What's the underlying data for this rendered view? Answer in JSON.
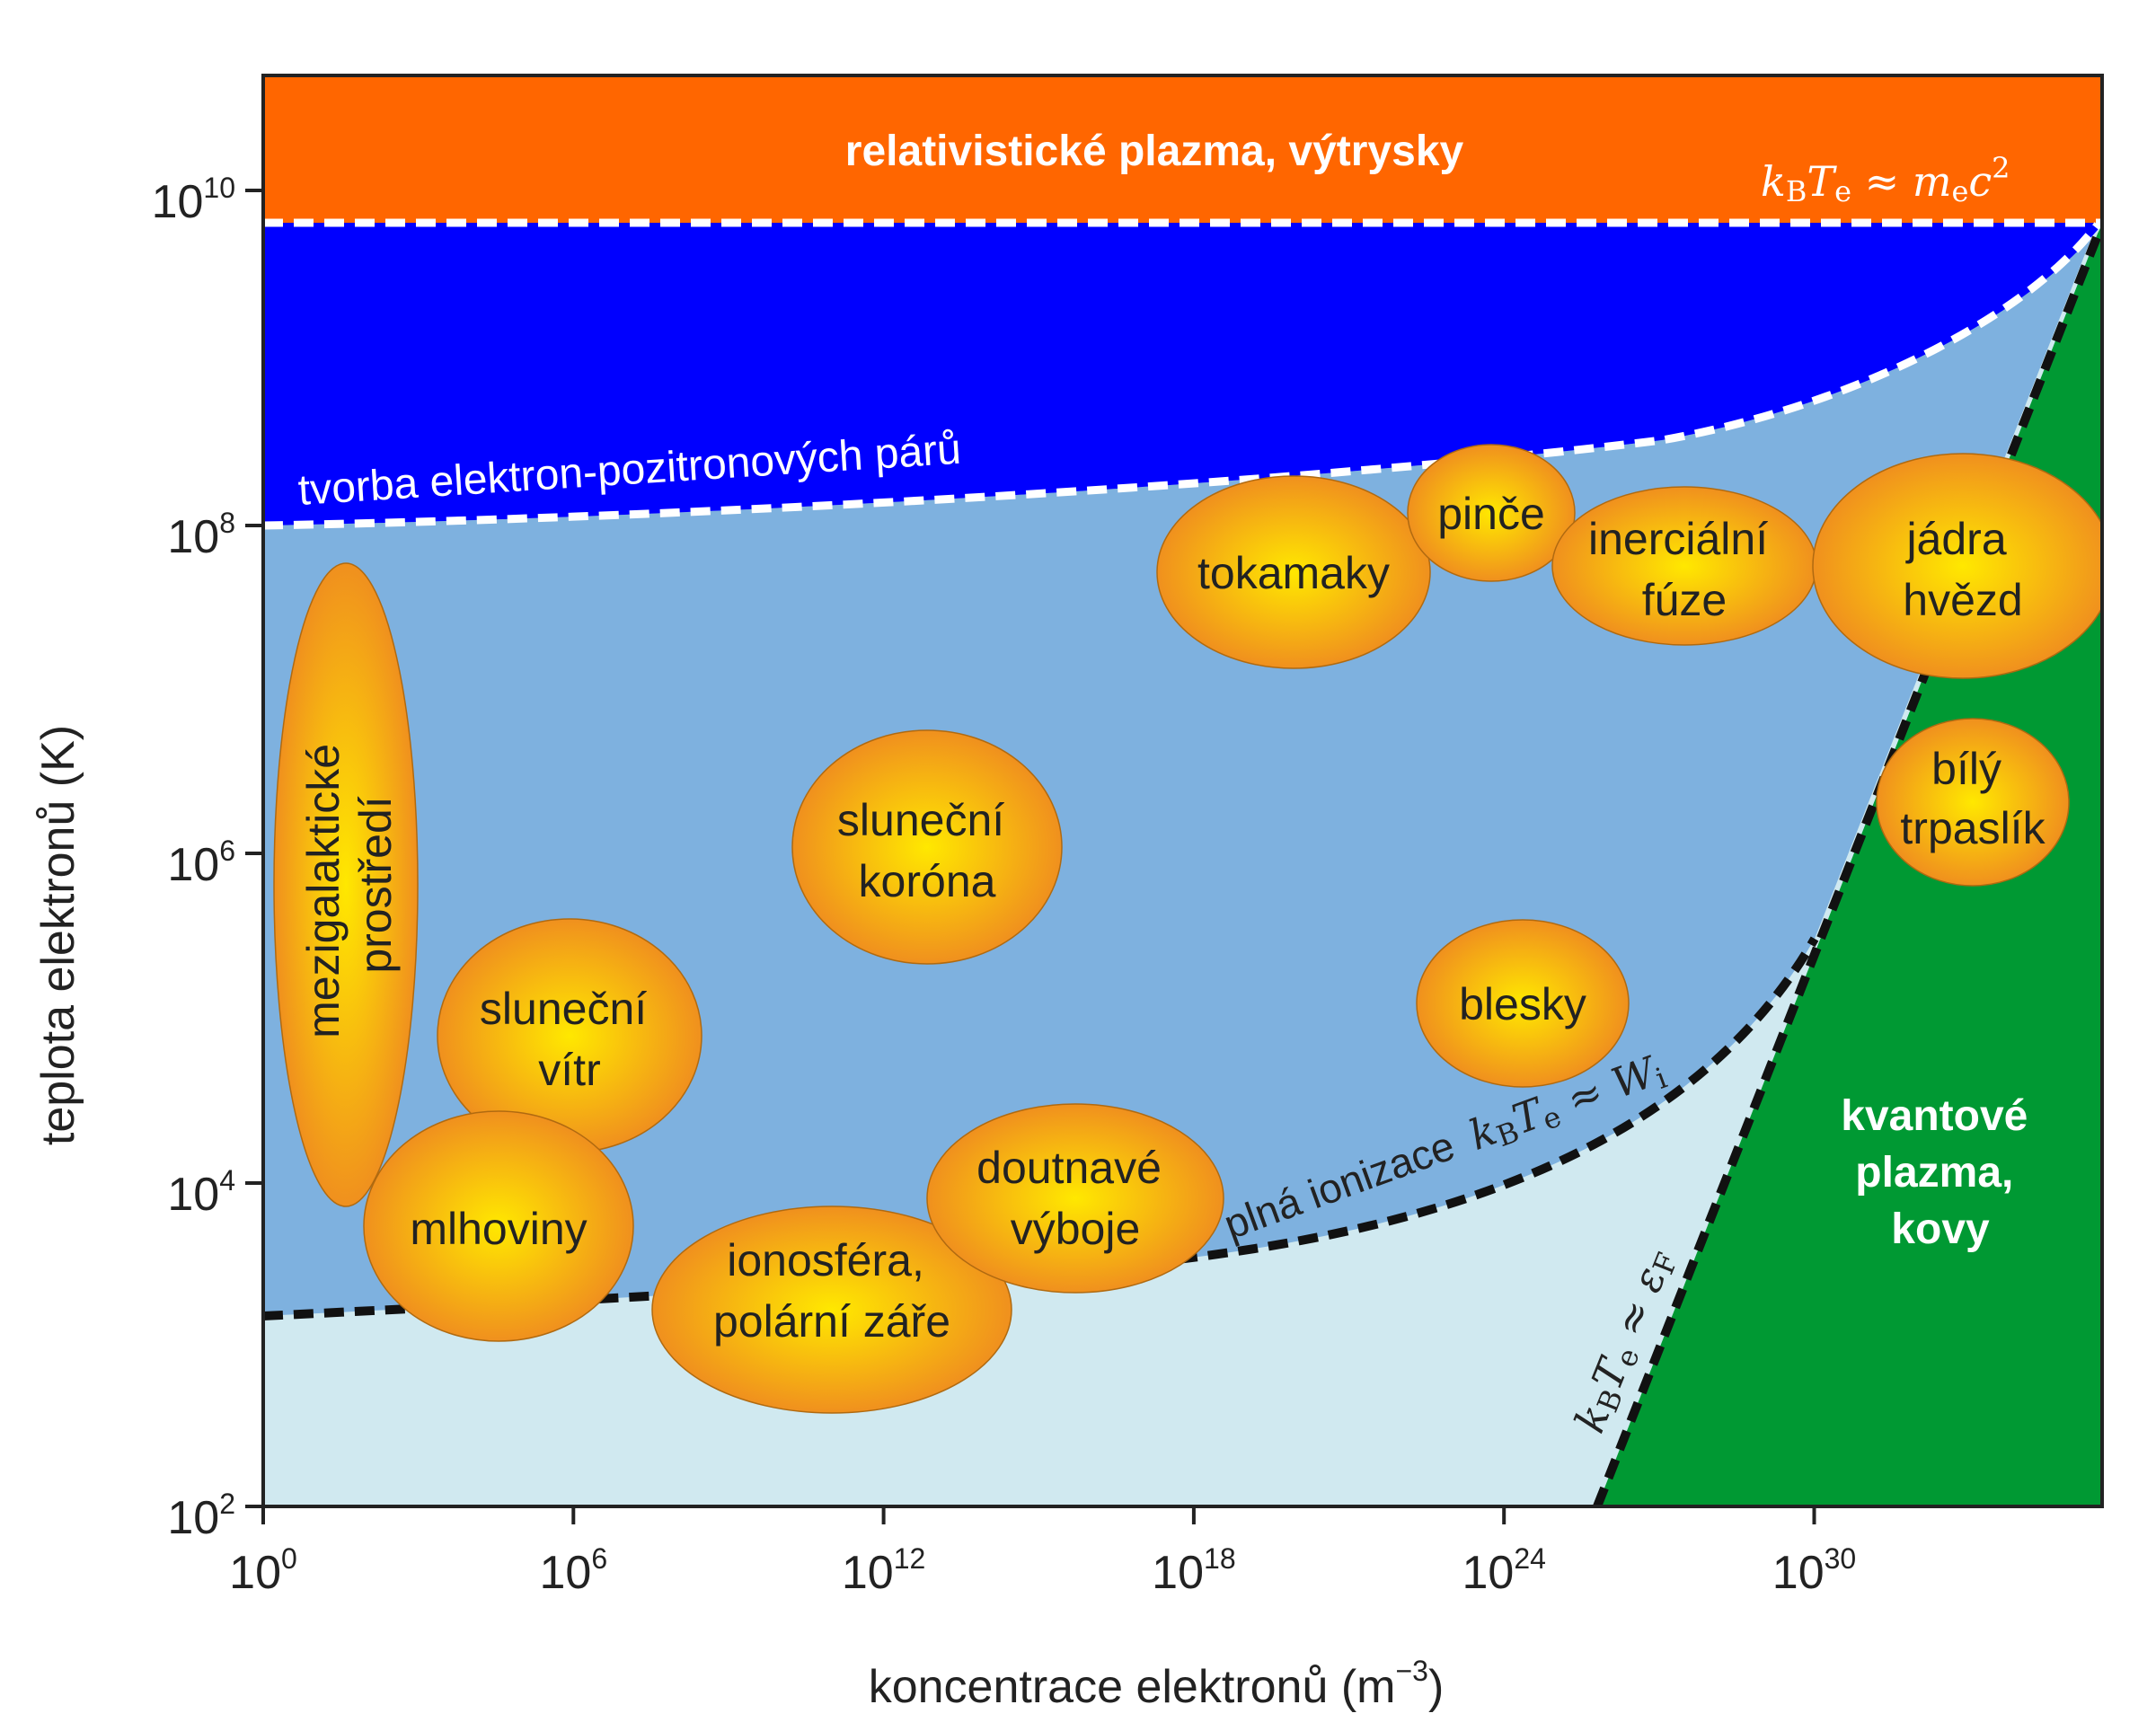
{
  "axes": {
    "xlabel": "koncentrace elektronů (m",
    "xlabel_sup": "−3",
    "xlabel_end": ")",
    "ylabel": "teplota elektronů (K)"
  },
  "chart_data": {
    "type": "diagram",
    "x_scale": "log",
    "y_scale": "log",
    "x_ticks": [
      {
        "base": "10",
        "exp": "0"
      },
      {
        "base": "10",
        "exp": "6"
      },
      {
        "base": "10",
        "exp": "12"
      },
      {
        "base": "10",
        "exp": "18"
      },
      {
        "base": "10",
        "exp": "24"
      },
      {
        "base": "10",
        "exp": "30"
      }
    ],
    "y_ticks": [
      {
        "base": "10",
        "exp": "2"
      },
      {
        "base": "10",
        "exp": "4"
      },
      {
        "base": "10",
        "exp": "6"
      },
      {
        "base": "10",
        "exp": "8"
      },
      {
        "base": "10",
        "exp": "10"
      }
    ]
  },
  "regions": {
    "relativistic": {
      "label": "relativistické plazma, výtrysky",
      "color": "#ff6600"
    },
    "pair_production": {
      "label": "tvorba elektron-pozitronových párů",
      "color": "#0000ff"
    },
    "ionized": {
      "color": "#7eb1df"
    },
    "partially_ionized": {
      "color": "#d0e9f0"
    },
    "quantum": {
      "lines": [
        "kvantové",
        "plazma,",
        "kovy"
      ],
      "color": "#009933"
    }
  },
  "boundaries": {
    "relativistic": {
      "k": "k",
      "b": "B",
      "t": "T",
      "e": "e",
      "approx": " ≈ ",
      "m": "m",
      "me": "e",
      "c": "c",
      "two": "2"
    },
    "ionization": {
      "label": "plná ionizace",
      "k": "k",
      "b": "B",
      "t": "T",
      "e": "e",
      "approx": " ≈ ",
      "w": "W",
      "i": "i"
    },
    "fermi": {
      "k": "k",
      "b": "B",
      "t": "T",
      "e": "e",
      "approx": " ≈ ",
      "eps": "ε",
      "f": "F"
    }
  },
  "blobs": [
    {
      "name": "mezigalakticke-prostredi",
      "lines": [
        "mezigalaktické",
        "prostředí"
      ]
    },
    {
      "name": "slunecni-vitr",
      "lines": [
        "sluneční",
        "vítr"
      ]
    },
    {
      "name": "mlhoviny",
      "lines": [
        "mlhoviny"
      ]
    },
    {
      "name": "slunecni-korona",
      "lines": [
        "sluneční",
        "koróna"
      ]
    },
    {
      "name": "ionosfera",
      "lines": [
        "ionosféra,",
        "polární záře"
      ]
    },
    {
      "name": "doutnave-vyboje",
      "lines": [
        "doutnavé",
        "výboje"
      ]
    },
    {
      "name": "tokamaky",
      "lines": [
        "tokamaky"
      ]
    },
    {
      "name": "pince",
      "lines": [
        "pinče"
      ]
    },
    {
      "name": "inercialni-fuze",
      "lines": [
        "inerciální",
        "fúze"
      ]
    },
    {
      "name": "jadra-hvezd",
      "lines": [
        "jádra",
        "hvězd"
      ]
    },
    {
      "name": "bily-trpaslik",
      "lines": [
        "bílý",
        "trpaslík"
      ]
    },
    {
      "name": "blesky",
      "lines": [
        "blesky"
      ]
    }
  ],
  "colors": {
    "blob_center": "#ffe800",
    "blob_edge": "#f0901e",
    "frame": "#222222"
  }
}
